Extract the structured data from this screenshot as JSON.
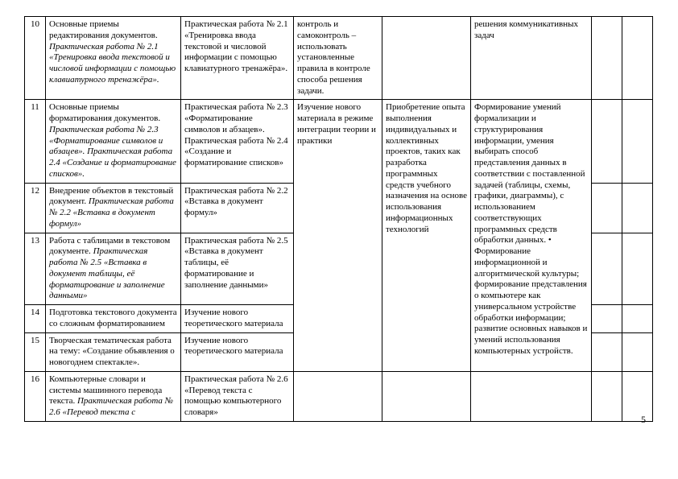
{
  "page_number": "5",
  "rows": [
    {
      "num": "10",
      "topic_plain": "Основные приемы редактирования документов.",
      "topic_ital": " Практическая работа  № 2.1 «Тренировка ввода текстовой и числовой информации с помощью клавиатурного тренажёра».",
      "c3": "Практическая работа  № 2.1 «Тренировка ввода текстовой и числовой информации с помощью клавиатурного тренажёра».",
      "c4": "контроль и самоконтроль – использовать установленные правила в контроле способа решения задачи.",
      "c5": "",
      "c6": "решения коммуникативных задач"
    },
    {
      "num": "11",
      "topic_plain": "Основные приемы форматирования документов.",
      "topic_ital": " Практическая работа  № 2.3 «Форматирование символов и абзацев». Практическая работа 2.4 «Создание и форматирование списков».",
      "c3": "Практическая работа  № 2.3 «Форматирование символов и абзацев». Практическая работа № 2.4 «Создание и форматирование списков»",
      "c4": "Изучение нового материала в режиме интеграции теории и практики",
      "c5": "Приобретение опыта выполнения индивидуальных и коллективных проектов, таких как разработка программных средств учебного назначения на основе использования информационных технологий",
      "c6": "Формирование умений формализации и структурирования информации, умения выбирать способ представления данных в соответствии с поставленной задачей (таблицы, схемы, графики, диаграммы), с использованием соответствующих программных средств обработки данных. • Формирование информационной и алгоритмической культуры; формирование представления о компьютере как универсальном устройстве обработки информации; развитие основных навыков и умений использования компьютерных устройств."
    },
    {
      "num": "12",
      "topic_plain": "Внедрение объектов в текстовый документ.",
      "topic_ital": " Практическая работа  № 2.2 «Вставка в документ формул»",
      "c3": "Практическая работа  № 2.2 «Вставка в документ формул»"
    },
    {
      "num": "13",
      "topic_plain": "Работа с таблицами в текстовом документе.",
      "topic_ital": " Практическая работа № 2.5 «Вставка в документ таблицы, её форматирование и заполнение данными»",
      "c3": "Практическая работа № 2.5 «Вставка в документ таблицы, её форматирование и заполнение данными»"
    },
    {
      "num": "14",
      "topic_plain": "Подготовка текстового документа со сложным форматированием",
      "topic_ital": "",
      "c3": "Изучение нового теоретического материала"
    },
    {
      "num": "15",
      "topic_plain": "Творческая тематическая работа на тему: «Создание объявления о новогоднем спектакле».",
      "topic_ital": "",
      "c3": "Изучение нового теоретического материала"
    },
    {
      "num": "16",
      "topic_plain": "Компьютерные словари и системы машинного перевода текста.",
      "topic_ital": " Практическая работа № 2.6 «Перевод текста с",
      "c3": "Практическая работа № 2.6 «Перевод текста с помощью компьютерного словаря»"
    }
  ]
}
